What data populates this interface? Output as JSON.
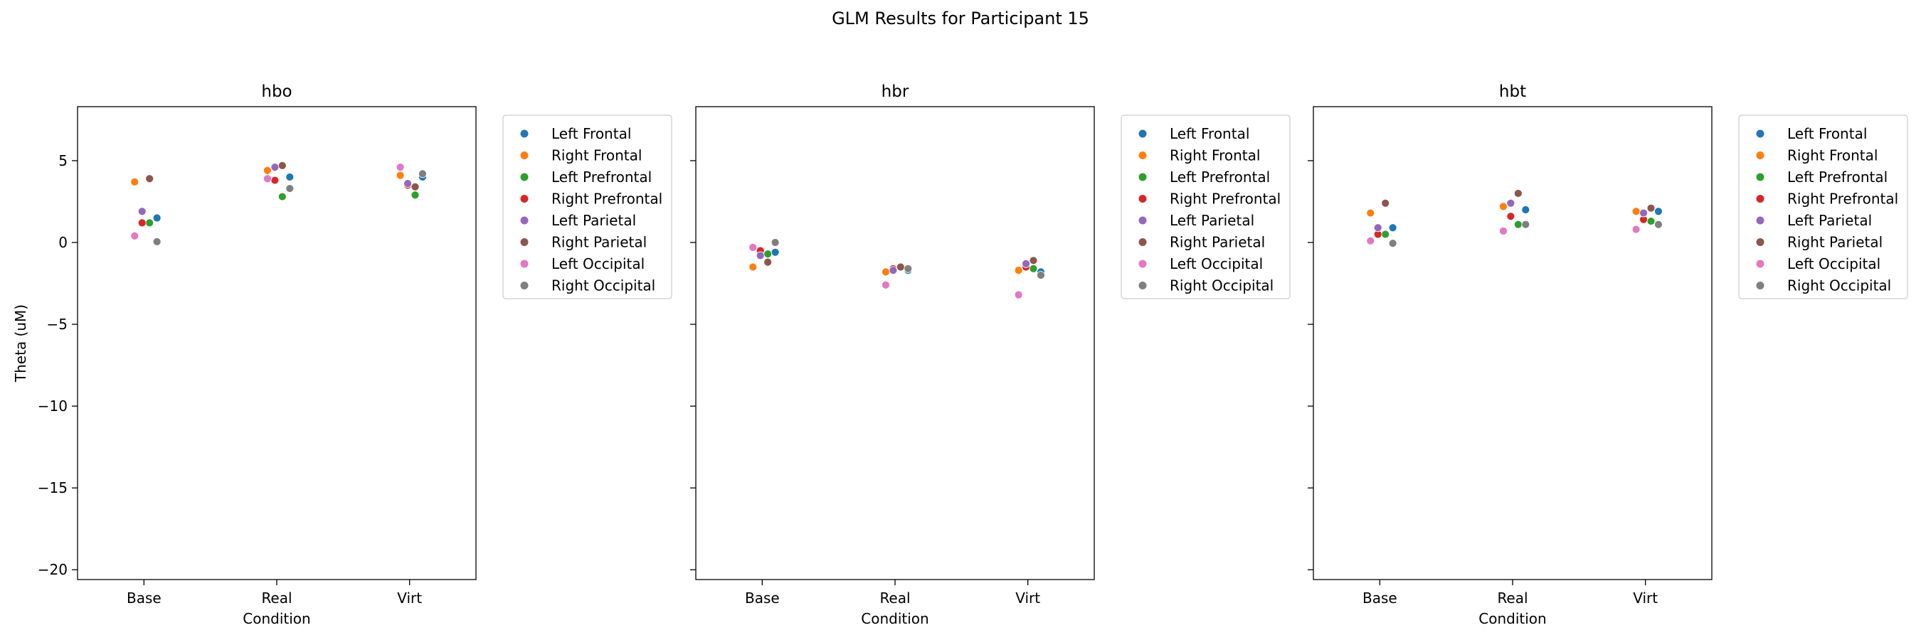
{
  "suptitle": "GLM Results for Participant 15",
  "colors": {
    "Left Frontal": "#1f77b4",
    "Right Frontal": "#ff7f0e",
    "Left Prefrontal": "#2ca02c",
    "Right Prefrontal": "#d62728",
    "Left Parietal": "#9467bd",
    "Right Parietal": "#8c564b",
    "Left Occipital": "#e377c2",
    "Right Occipital": "#7f7f7f"
  },
  "chart_data": [
    {
      "type": "scatter",
      "title": "hbo",
      "xlabel": "Condition",
      "ylabel": "Theta (uM)",
      "categories": [
        "Base",
        "Real",
        "Virt"
      ],
      "ylim": [
        -20.6,
        8.3
      ],
      "yticks": [
        5,
        0,
        -5,
        -10,
        -15,
        -20
      ],
      "grid": false,
      "legend": "right-outside-top",
      "series": [
        {
          "name": "Left Frontal",
          "values": [
            1.5,
            4.0,
            4.0
          ]
        },
        {
          "name": "Right Frontal",
          "values": [
            3.7,
            4.4,
            4.1
          ]
        },
        {
          "name": "Left Prefrontal",
          "values": [
            1.2,
            2.8,
            2.9
          ]
        },
        {
          "name": "Right Prefrontal",
          "values": [
            1.2,
            3.8,
            3.5
          ]
        },
        {
          "name": "Left Parietal",
          "values": [
            1.9,
            4.6,
            3.6
          ]
        },
        {
          "name": "Right Parietal",
          "values": [
            3.9,
            4.7,
            3.4
          ]
        },
        {
          "name": "Left Occipital",
          "values": [
            0.4,
            3.9,
            4.6
          ]
        },
        {
          "name": "Right Occipital",
          "values": [
            0.05,
            3.3,
            4.2
          ]
        }
      ]
    },
    {
      "type": "scatter",
      "title": "hbr",
      "xlabel": "Condition",
      "ylabel": "",
      "categories": [
        "Base",
        "Real",
        "Virt"
      ],
      "ylim": [
        -20.6,
        8.3
      ],
      "yticks": [
        5,
        0,
        -5,
        -10,
        -15,
        -20
      ],
      "grid": false,
      "legend": "right-outside-top",
      "series": [
        {
          "name": "Left Frontal",
          "values": [
            -0.6,
            -1.7,
            -1.8
          ]
        },
        {
          "name": "Right Frontal",
          "values": [
            -1.5,
            -1.8,
            -1.7
          ]
        },
        {
          "name": "Left Prefrontal",
          "values": [
            -0.7,
            -1.5,
            -1.6
          ]
        },
        {
          "name": "Right Prefrontal",
          "values": [
            -0.5,
            -1.6,
            -1.5
          ]
        },
        {
          "name": "Left Parietal",
          "values": [
            -0.8,
            -1.7,
            -1.3
          ]
        },
        {
          "name": "Right Parietal",
          "values": [
            -1.2,
            -1.5,
            -1.1
          ]
        },
        {
          "name": "Left Occipital",
          "values": [
            -0.3,
            -2.6,
            -3.2
          ]
        },
        {
          "name": "Right Occipital",
          "values": [
            0.0,
            -1.6,
            -2.0
          ]
        }
      ]
    },
    {
      "type": "scatter",
      "title": "hbt",
      "xlabel": "Condition",
      "ylabel": "",
      "categories": [
        "Base",
        "Real",
        "Virt"
      ],
      "ylim": [
        -20.6,
        8.3
      ],
      "yticks": [
        5,
        0,
        -5,
        -10,
        -15,
        -20
      ],
      "grid": false,
      "legend": "right-outside-top",
      "series": [
        {
          "name": "Left Frontal",
          "values": [
            0.9,
            2.0,
            1.9
          ]
        },
        {
          "name": "Right Frontal",
          "values": [
            1.8,
            2.2,
            1.9
          ]
        },
        {
          "name": "Left Prefrontal",
          "values": [
            0.5,
            1.1,
            1.3
          ]
        },
        {
          "name": "Right Prefrontal",
          "values": [
            0.5,
            1.6,
            1.4
          ]
        },
        {
          "name": "Left Parietal",
          "values": [
            0.9,
            2.4,
            1.8
          ]
        },
        {
          "name": "Right Parietal",
          "values": [
            2.4,
            3.0,
            2.1
          ]
        },
        {
          "name": "Left Occipital",
          "values": [
            0.1,
            0.7,
            0.8
          ]
        },
        {
          "name": "Right Occipital",
          "values": [
            -0.05,
            1.1,
            1.1
          ]
        }
      ]
    }
  ]
}
